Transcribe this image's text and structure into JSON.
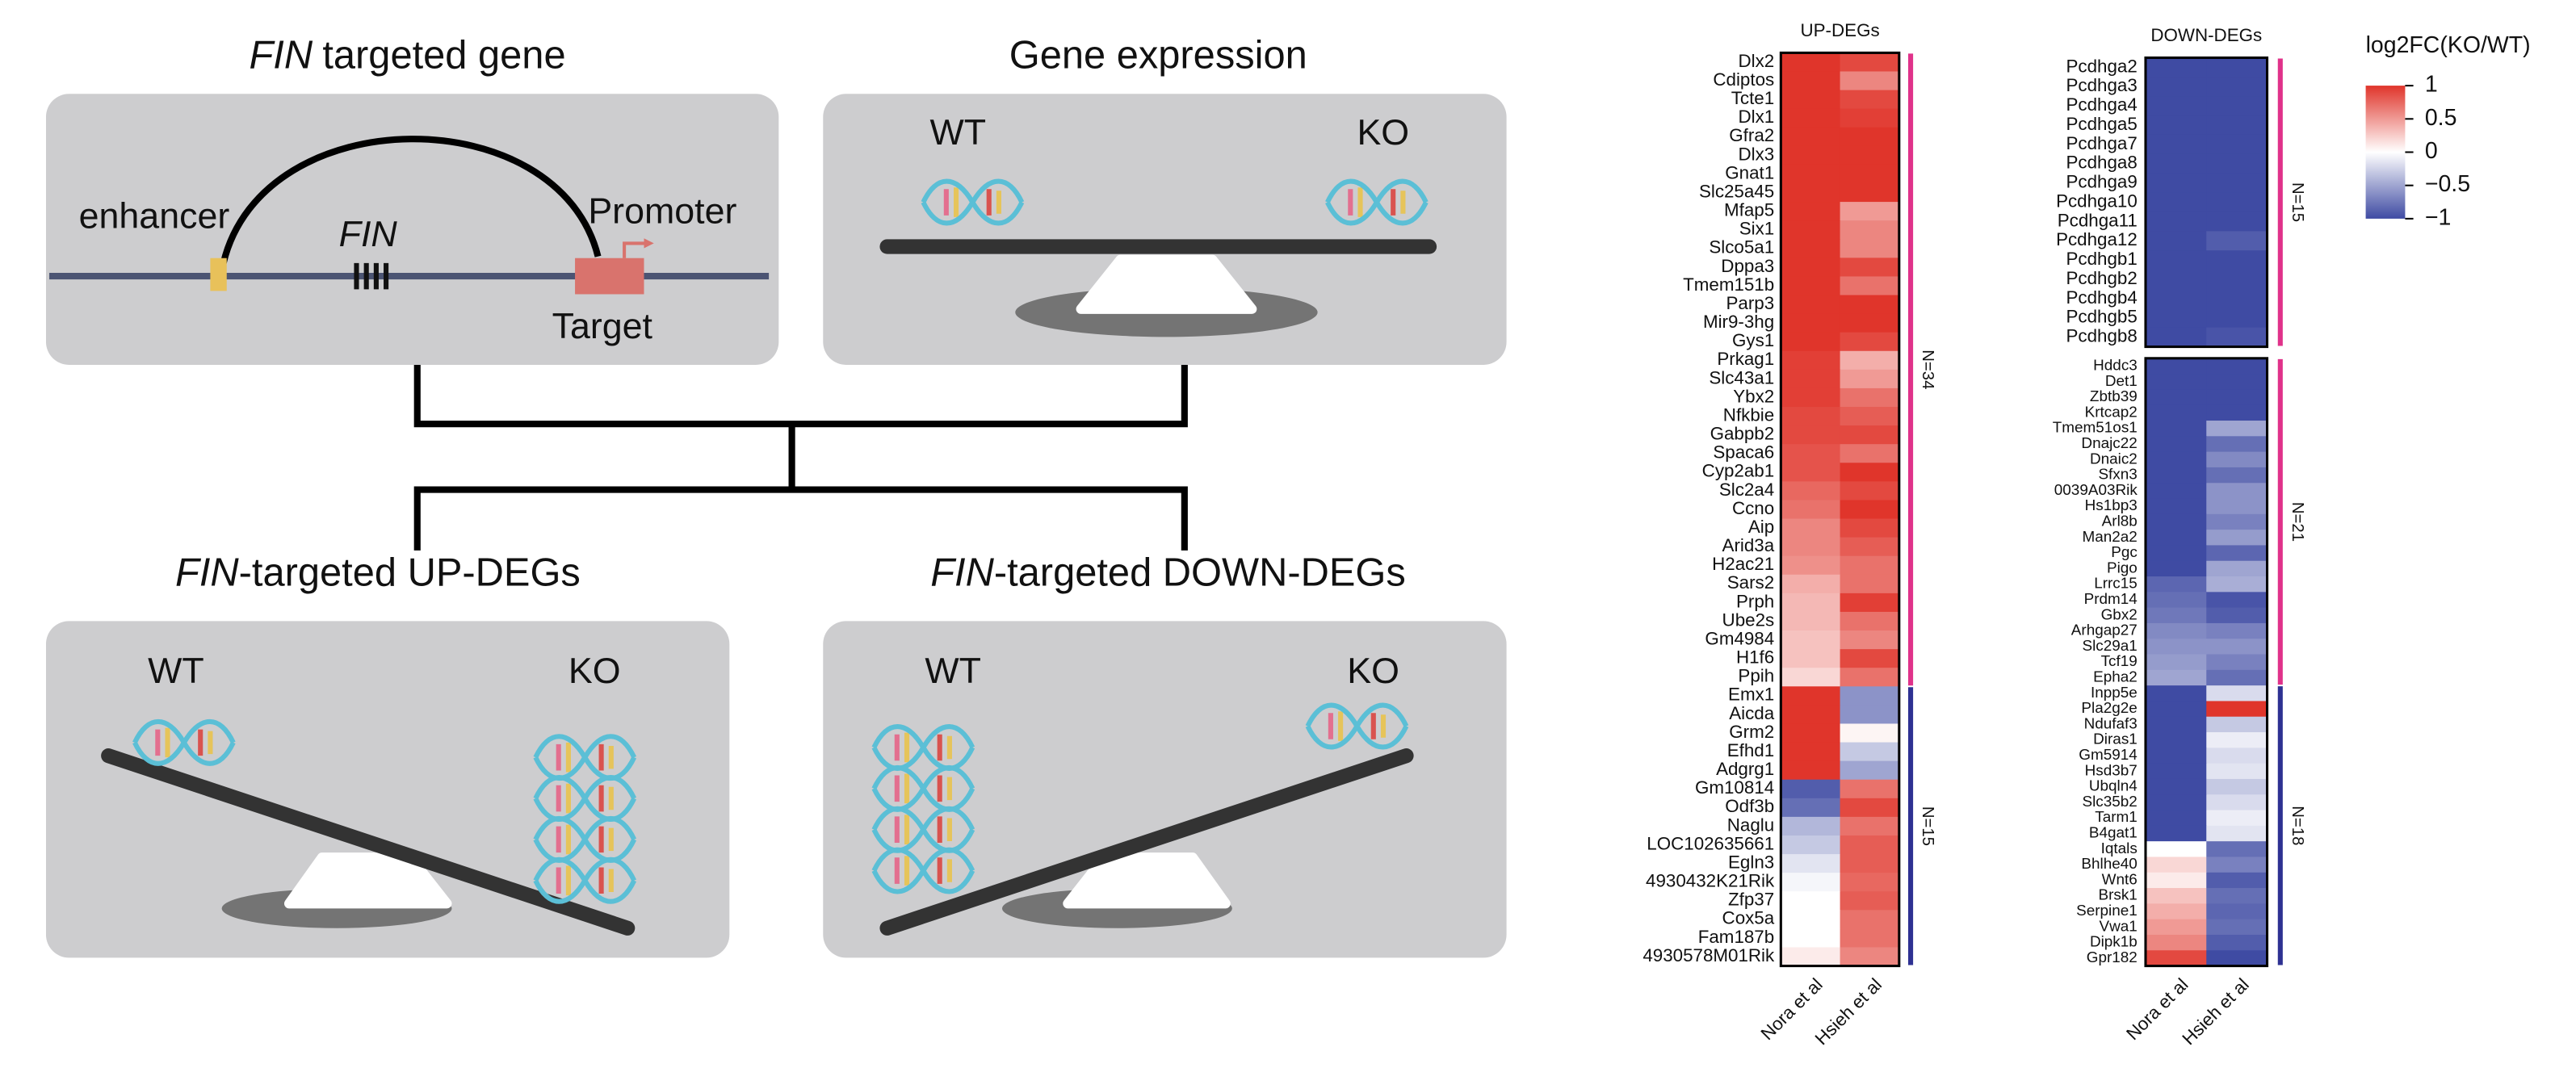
{
  "diagram": {
    "panels": [
      {
        "title": [
          {
            "text": "FIN",
            "italic": true
          },
          {
            "text": "targeted gene"
          }
        ],
        "enhancer": "enhancer",
        "gene": "FIN",
        "promoter": "Promoter",
        "target": "Target"
      },
      {
        "title": [
          {
            "text": "Gene expression"
          }
        ],
        "wt": "WT",
        "ko": "KO"
      },
      {
        "title": [
          {
            "text": "FIN",
            "italic": true
          },
          {
            "text": "-targeted UP-DEGs"
          }
        ],
        "wt": "WT",
        "ko": "KO"
      },
      {
        "title": [
          {
            "text": "FIN",
            "italic": true
          },
          {
            "text": "-targeted DOWN-DEGs"
          }
        ],
        "wt": "WT",
        "ko": "KO"
      }
    ]
  },
  "chart_data": [
    {
      "type": "heatmap",
      "title": "UP-DEGs",
      "columns": [
        "Nora et al",
        "Hsieh et al"
      ],
      "clim": [
        -1,
        1
      ],
      "colors": {
        "low": "#3f4ba3",
        "mid": "#ffffff",
        "high": "#e0352b"
      },
      "blocks": [
        {
          "groups": [
            {
              "label": "N=34",
              "color": "#e0328a",
              "rows": [
                "Dlx2",
                "Cdiptos",
                "Tcte1",
                "Dlx1",
                "Gfra2",
                "Dlx3",
                "Gnat1",
                "Slc25a45",
                "Mfap5",
                "Six1",
                "Slco5a1",
                "Dppa3",
                "Tmem151b",
                "Parp3",
                "Mir9-3hg",
                "Gys1",
                "Prkag1",
                "Slc43a1",
                "Ybx2",
                "Nfkbie",
                "Gabpb2",
                "Spaca6",
                "Cyp2ab1",
                "Slc2a4",
                "Ccno",
                "Aip",
                "Arid3a",
                "H2ac21",
                "Sars2",
                "Prph",
                "Ube2s",
                "Gm4984",
                "H1f6",
                "Ppih"
              ],
              "values": [
                [
                  1,
                  0.9
                ],
                [
                  1,
                  0.6
                ],
                [
                  1,
                  0.9
                ],
                [
                  1,
                  0.95
                ],
                [
                  1,
                  1
                ],
                [
                  1,
                  1
                ],
                [
                  1,
                  1
                ],
                [
                  1,
                  1
                ],
                [
                  1,
                  0.5
                ],
                [
                  1,
                  0.6
                ],
                [
                  1,
                  0.6
                ],
                [
                  1,
                  0.9
                ],
                [
                  1,
                  0.7
                ],
                [
                  1,
                  1
                ],
                [
                  1,
                  1
                ],
                [
                  1,
                  0.9
                ],
                [
                  0.95,
                  0.4
                ],
                [
                  0.95,
                  0.5
                ],
                [
                  0.95,
                  0.7
                ],
                [
                  0.9,
                  0.8
                ],
                [
                  0.9,
                  0.9
                ],
                [
                  0.85,
                  0.7
                ],
                [
                  0.85,
                  1
                ],
                [
                  0.75,
                  0.9
                ],
                [
                  0.7,
                  1
                ],
                [
                  0.6,
                  0.9
                ],
                [
                  0.6,
                  0.8
                ],
                [
                  0.55,
                  0.7
                ],
                [
                  0.4,
                  0.7
                ],
                [
                  0.35,
                  0.95
                ],
                [
                  0.35,
                  0.7
                ],
                [
                  0.3,
                  0.6
                ],
                [
                  0.3,
                  0.9
                ],
                [
                  0.2,
                  0.7
                ]
              ]
            },
            {
              "label": "N=15",
              "color": "#2e3192",
              "rows": [
                "Emx1",
                "Aicda",
                "Grm2",
                "Efhd1",
                "Adgrg1",
                "Gm10814",
                "Odf3b",
                "Naglu",
                "LOC102635661",
                "Egln3",
                "4930432K21Rik",
                "Zfp37",
                "Cox5a",
                "Fam187b",
                "4930578M01Rik"
              ],
              "values": [
                [
                  1,
                  -0.6
                ],
                [
                  1,
                  -0.6
                ],
                [
                  1,
                  0.05
                ],
                [
                  1,
                  -0.3
                ],
                [
                  1,
                  -0.5
                ],
                [
                  -0.9,
                  0.7
                ],
                [
                  -0.8,
                  0.9
                ],
                [
                  -0.4,
                  0.7
                ],
                [
                  -0.3,
                  0.8
                ],
                [
                  -0.15,
                  0.8
                ],
                [
                  -0.05,
                  0.75
                ],
                [
                  0,
                  0.8
                ],
                [
                  0,
                  0.7
                ],
                [
                  0,
                  0.7
                ],
                [
                  0.1,
                  0.6
                ]
              ]
            }
          ]
        }
      ]
    },
    {
      "type": "heatmap",
      "title": "DOWN-DEGs",
      "columns": [
        "Nora et al",
        "Hsieh et al"
      ],
      "clim": [
        -1,
        1
      ],
      "colors": {
        "low": "#3f4ba3",
        "mid": "#ffffff",
        "high": "#e0352b"
      },
      "colorbar_title": "log2FC(KO/WT)",
      "cticks": [
        1,
        0.5,
        0,
        {
          "value": -0.5,
          "label": "−0.5"
        },
        {
          "value": -1,
          "label": "−1"
        }
      ],
      "blocks": [
        {
          "groups": [
            {
              "label": "N=15",
              "color": "#e0328a",
              "rows": [
                "Pcdhga2",
                "Pcdhga3",
                "Pcdhga4",
                "Pcdhga5",
                "Pcdhga7",
                "Pcdhga8",
                "Pcdhga9",
                "Pcdhga10",
                "Pcdhga11",
                "Pcdhga12",
                "Pcdhgb1",
                "Pcdhgb2",
                "Pcdhgb4",
                "Pcdhgb5",
                "Pcdhgb8"
              ],
              "values": [
                [
                  -1,
                  -1
                ],
                [
                  -1,
                  -1
                ],
                [
                  -1,
                  -1
                ],
                [
                  -1,
                  -1
                ],
                [
                  -1,
                  -1
                ],
                [
                  -1,
                  -1
                ],
                [
                  -1,
                  -1
                ],
                [
                  -1,
                  -1
                ],
                [
                  -1,
                  -1
                ],
                [
                  -1,
                  -0.9
                ],
                [
                  -1,
                  -1
                ],
                [
                  -1,
                  -1
                ],
                [
                  -1,
                  -1
                ],
                [
                  -1,
                  -1
                ],
                [
                  -1,
                  -0.95
                ]
              ]
            }
          ]
        },
        {
          "groups": [
            {
              "label": "N=21",
              "color": "#e0328a",
              "rows": [
                "Hddc3",
                "Det1",
                "Zbtb39",
                "Krtcap2",
                "Tmem51os1",
                "Dnajc22",
                "Dnaic2",
                "Sfxn3",
                "0039A03Rik",
                "Hs1bp3",
                "Arl8b",
                "Man2a2",
                "Pgc",
                "Pigo",
                "Lrrc15",
                "Prdm14",
                "Gbx2",
                "Arhgap27",
                "Slc29a1",
                "Tcf19",
                "Epha2"
              ],
              "values": [
                [
                  -1,
                  -1
                ],
                [
                  -1,
                  -1
                ],
                [
                  -1,
                  -1
                ],
                [
                  -1,
                  -1
                ],
                [
                  -1,
                  -0.5
                ],
                [
                  -1,
                  -0.8
                ],
                [
                  -1,
                  -0.65
                ],
                [
                  -1,
                  -0.8
                ],
                [
                  -1,
                  -0.6
                ],
                [
                  -1,
                  -0.6
                ],
                [
                  -1,
                  -0.7
                ],
                [
                  -1,
                  -0.55
                ],
                [
                  -1,
                  -0.85
                ],
                [
                  -1,
                  -0.5
                ],
                [
                  -0.85,
                  -0.45
                ],
                [
                  -0.8,
                  -0.95
                ],
                [
                  -0.75,
                  -0.9
                ],
                [
                  -0.65,
                  -0.7
                ],
                [
                  -0.6,
                  -0.6
                ],
                [
                  -0.55,
                  -0.7
                ],
                [
                  -0.5,
                  -0.8
                ]
              ]
            },
            {
              "label": "N=18",
              "color": "#2e3192",
              "rows": [
                "Inpp5e",
                "Pla2g2e",
                "Ndufaf3",
                "Diras1",
                "Gm5914",
                "Hsd3b7",
                "Ubqln4",
                "Slc35b2",
                "Tarm1",
                "B4gat1",
                "Iqtals",
                "Bhlhe40",
                "Wnt6",
                "Brsk1",
                "Serpine1",
                "Vwa1",
                "Dipk1b",
                "Gpr182"
              ],
              "values": [
                [
                  -1,
                  -0.2
                ],
                [
                  -1,
                  1
                ],
                [
                  -1,
                  -0.3
                ],
                [
                  -1,
                  -0.1
                ],
                [
                  -1,
                  -0.2
                ],
                [
                  -1,
                  -0.15
                ],
                [
                  -1,
                  -0.3
                ],
                [
                  -1,
                  -0.2
                ],
                [
                  -1,
                  -0.1
                ],
                [
                  -1,
                  -0.15
                ],
                [
                  0,
                  -0.8
                ],
                [
                  0.2,
                  -0.7
                ],
                [
                  0.1,
                  -0.9
                ],
                [
                  0.3,
                  -0.8
                ],
                [
                  0.4,
                  -0.85
                ],
                [
                  0.5,
                  -0.8
                ],
                [
                  0.6,
                  -0.9
                ],
                [
                  0.9,
                  -1
                ]
              ]
            }
          ]
        }
      ]
    }
  ]
}
